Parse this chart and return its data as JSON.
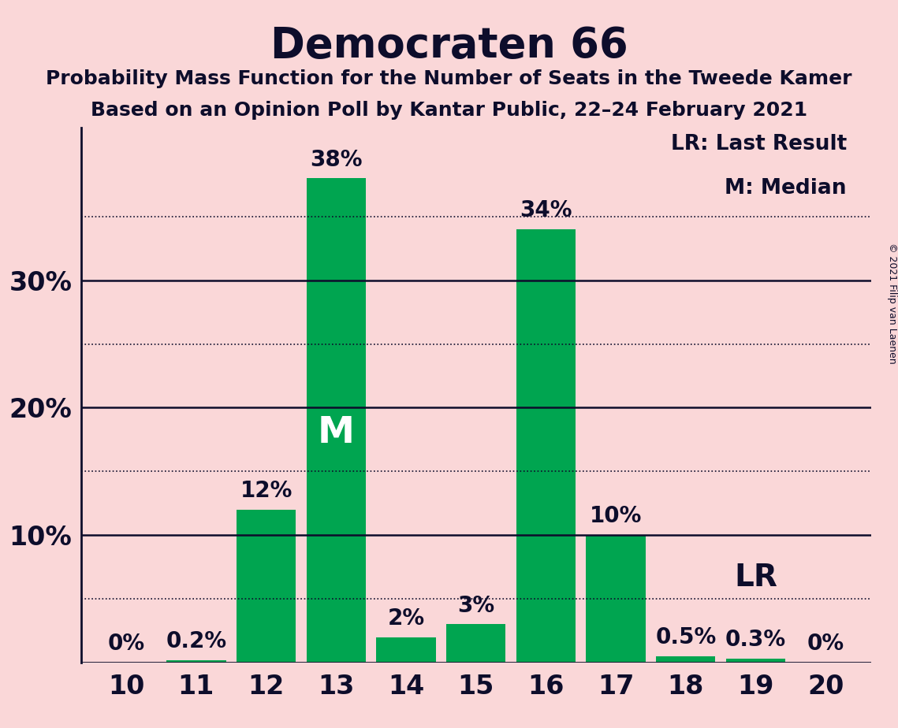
{
  "title": "Democraten 66",
  "subtitle1": "Probability Mass Function for the Number of Seats in the Tweede Kamer",
  "subtitle2": "Based on an Opinion Poll by Kantar Public, 22–24 February 2021",
  "copyright": "© 2021 Filip van Laenen",
  "categories": [
    10,
    11,
    12,
    13,
    14,
    15,
    16,
    17,
    18,
    19,
    20
  ],
  "values": [
    0.0,
    0.2,
    12.0,
    38.0,
    2.0,
    3.0,
    34.0,
    10.0,
    0.5,
    0.3,
    0.0
  ],
  "bar_color": "#00A550",
  "background_color": "#FAD7D8",
  "text_color": "#0D0D2B",
  "median_seat": 13,
  "lr_seat": 19,
  "ylim": [
    0,
    42
  ],
  "yticks_solid": [
    10,
    20,
    30
  ],
  "yticks_dotted": [
    5,
    15,
    25,
    35
  ],
  "bar_labels": [
    "0%",
    "0.2%",
    "12%",
    "38%",
    "2%",
    "3%",
    "34%",
    "10%",
    "0.5%",
    "0.3%",
    "0%"
  ],
  "legend_lr": "LR: Last Result",
  "legend_m": "M: Median"
}
